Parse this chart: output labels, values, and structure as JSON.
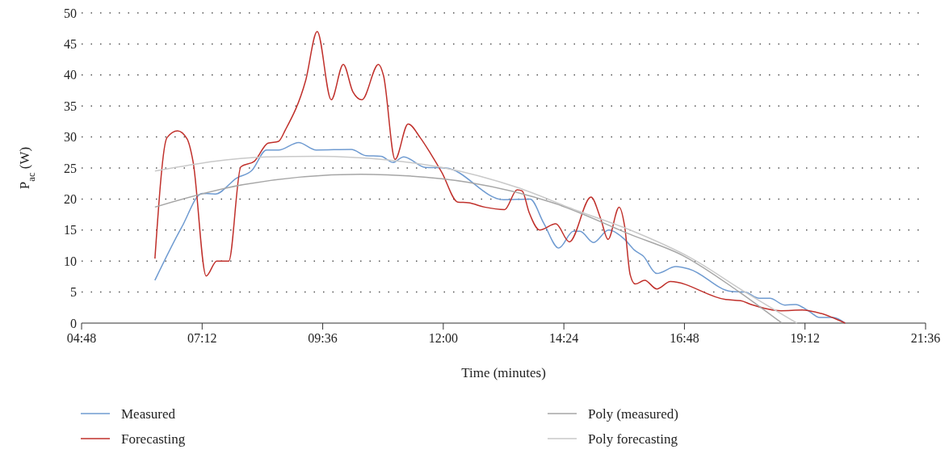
{
  "chart_data": {
    "type": "line",
    "xlabel": "Time (minutes)",
    "ylabel": "P$_{ac}$ (W)",
    "xlim": [
      4.8,
      21.6
    ],
    "xticks": [
      {
        "value": 4.8,
        "label": "04:48"
      },
      {
        "value": 7.2,
        "label": "07:12"
      },
      {
        "value": 9.6,
        "label": "09:36"
      },
      {
        "value": 12,
        "label": "12:00"
      },
      {
        "value": 14.4,
        "label": "14:24"
      },
      {
        "value": 16.8,
        "label": "16:48"
      },
      {
        "value": 19.2,
        "label": "19:12"
      },
      {
        "value": 21.6,
        "label": "21:36"
      }
    ],
    "ylim": [
      0,
      50
    ],
    "yticks": [
      0,
      5,
      10,
      15,
      20,
      25,
      30,
      35,
      40,
      45,
      50
    ],
    "grid": "y",
    "legend": "bottom",
    "marker": "none",
    "line_style": "solid",
    "series": [
      {
        "name": "Measured",
        "color": "#6f9bd1",
        "x": [
          6.26,
          6.79,
          7.2,
          7.46,
          7.89,
          8.19,
          8.48,
          8.72,
          9.12,
          9.47,
          10.17,
          10.46,
          10.76,
          11.0,
          11.21,
          11.64,
          12.05,
          13.2,
          13.73,
          14.0,
          14.3,
          14.59,
          14.72,
          14.99,
          15.29,
          15.61,
          15.8,
          15.98,
          16.25,
          16.63,
          16.9,
          17.73,
          18.0,
          18.29,
          18.5,
          18.8,
          19.01,
          19.28,
          19.49,
          19.76,
          20.0
        ],
        "values": [
          6.9,
          15.4,
          20.9,
          20.8,
          23.4,
          24.6,
          27.9,
          27.9,
          29.1,
          27.9,
          28.0,
          27.0,
          26.9,
          25.9,
          26.8,
          25.1,
          25.0,
          19.9,
          20.0,
          16.1,
          12.1,
          14.8,
          14.8,
          13.0,
          15.0,
          13.5,
          11.8,
          10.8,
          8.0,
          9.1,
          8.7,
          5.1,
          5.0,
          4.0,
          4.0,
          2.9,
          3.0,
          1.9,
          0.9,
          0.9,
          0
        ]
      },
      {
        "name": "Forecasting",
        "color": "#c0302b",
        "x": [
          6.26,
          6.5,
          6.71,
          6.9,
          7.02,
          7.28,
          7.49,
          7.73,
          7.97,
          8.24,
          8.51,
          8.72,
          8.86,
          9.26,
          9.49,
          9.77,
          10.01,
          10.2,
          10.38,
          10.71,
          10.81,
          11.04,
          11.3,
          11.54,
          11.75,
          11.97,
          12.29,
          12.5,
          12.82,
          13.22,
          13.47,
          13.57,
          13.71,
          13.92,
          14.24,
          14.51,
          14.94,
          15.13,
          15.28,
          15.5,
          15.61,
          15.72,
          15.82,
          16.01,
          16.25,
          16.52,
          17.62,
          17.92,
          18.13,
          18.72,
          19.15,
          19.28,
          20.0
        ],
        "values": [
          10.4,
          29.9,
          31.0,
          29.7,
          26.0,
          7.6,
          10.0,
          10.0,
          25.2,
          26.1,
          29.0,
          29.3,
          31.2,
          39.1,
          47,
          36.0,
          41.7,
          37.3,
          36.0,
          41.7,
          39.9,
          26.4,
          32.1,
          29.9,
          27.3,
          24.3,
          19.5,
          19.4,
          18.7,
          18.3,
          21.5,
          21.3,
          17.8,
          15.0,
          16.0,
          13.1,
          20.3,
          16.9,
          13.5,
          18.7,
          15.6,
          7.8,
          6.3,
          6.9,
          5.5,
          6.7,
          3.8,
          3.6,
          3.0,
          2.0,
          2.1,
          2.0,
          0
        ]
      },
      {
        "name": "Poly (measured)",
        "color": "#a6a6a6",
        "x": [
          6.26,
          8.0,
          10.36,
          10.89,
          12.5,
          14.22,
          15.72,
          16.79,
          17.86,
          18.74
        ],
        "values": [
          18.7,
          22.3,
          24.0,
          23.9,
          22.7,
          19.3,
          14.3,
          10.8,
          5.2,
          0
        ]
      },
      {
        "name": "Poly forecasting",
        "color": "#c9c9c9",
        "x": [
          6.26,
          8.48,
          9.5,
          10.89,
          11.97,
          13.46,
          14.64,
          15.72,
          16.95,
          17.97,
          19.04
        ],
        "values": [
          24.5,
          26.8,
          26.9,
          26.3,
          25.1,
          21.9,
          18.2,
          15.0,
          10.4,
          5.2,
          0
        ]
      }
    ]
  }
}
